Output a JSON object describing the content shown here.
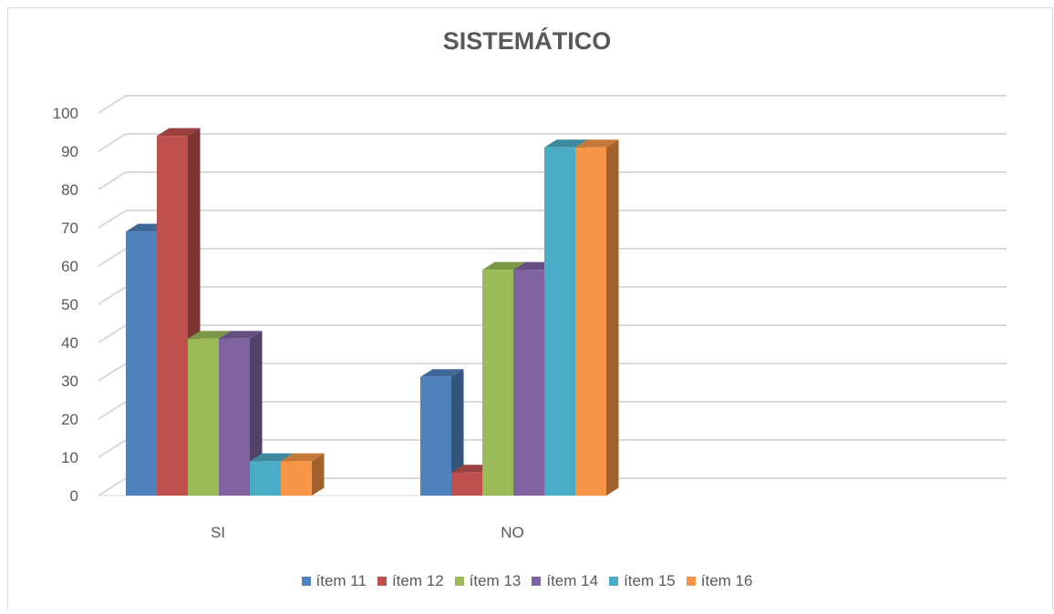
{
  "chart_data": {
    "type": "bar",
    "title": "SISTEMÁTICO",
    "categories": [
      "SI",
      "NO"
    ],
    "series": [
      {
        "name": "ítem 11",
        "color": "#4F81BD",
        "values": [
          69,
          31
        ]
      },
      {
        "name": "ítem 12",
        "color": "#C0504D",
        "values": [
          94,
          6
        ]
      },
      {
        "name": "ítem 13",
        "color": "#9BBB59",
        "values": [
          41,
          59
        ]
      },
      {
        "name": "ítem 14",
        "color": "#8064A2",
        "values": [
          41,
          59
        ]
      },
      {
        "name": "ítem 15",
        "color": "#4BACC6",
        "values": [
          9,
          91
        ]
      },
      {
        "name": "ítem 16",
        "color": "#F79646",
        "values": [
          9,
          91
        ]
      }
    ],
    "yticks": [
      "0",
      "10",
      "20",
      "30",
      "40",
      "50",
      "60",
      "70",
      "80",
      "90",
      "100"
    ],
    "ylim": [
      0,
      100
    ],
    "grid": true,
    "legend_position": "bottom",
    "style": "3d-column"
  }
}
